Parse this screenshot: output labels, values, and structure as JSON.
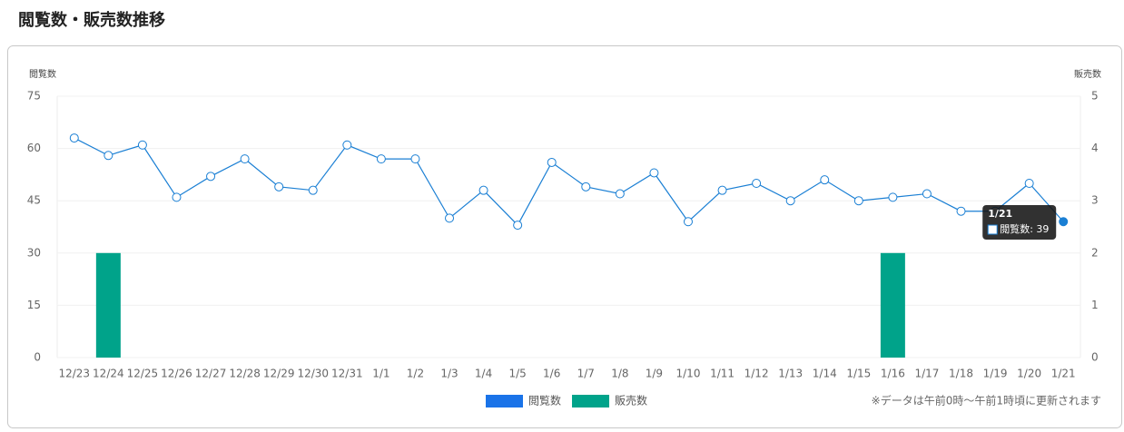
{
  "chart_data": {
    "type": "combo",
    "title": "閲覧数・販売数推移",
    "y_label": "閲覧数",
    "y2_label": "販売数",
    "categories": [
      "12/23",
      "12/24",
      "12/25",
      "12/26",
      "12/27",
      "12/28",
      "12/29",
      "12/30",
      "12/31",
      "1/1",
      "1/2",
      "1/3",
      "1/4",
      "1/5",
      "1/6",
      "1/7",
      "1/8",
      "1/9",
      "1/10",
      "1/11",
      "1/12",
      "1/13",
      "1/14",
      "1/15",
      "1/16",
      "1/17",
      "1/18",
      "1/19",
      "1/20",
      "1/21"
    ],
    "series": [
      {
        "name": "閲覧数",
        "type": "line",
        "color": "#1a7fd4",
        "legend_color": "#1a73e8",
        "values": [
          63,
          58,
          61,
          46,
          52,
          57,
          49,
          48,
          61,
          57,
          57,
          40,
          48,
          38,
          56,
          49,
          47,
          53,
          39,
          48,
          50,
          45,
          51,
          45,
          46,
          47,
          42,
          42,
          50,
          39
        ]
      },
      {
        "name": "販売数",
        "type": "bar",
        "axis": "y2",
        "color": "#00a38a",
        "values": [
          0,
          2,
          0,
          0,
          0,
          0,
          0,
          0,
          0,
          0,
          0,
          0,
          0,
          0,
          0,
          0,
          0,
          0,
          0,
          0,
          0,
          0,
          0,
          0,
          2,
          0,
          0,
          0,
          0,
          0
        ]
      }
    ],
    "ylim": [
      0,
      75
    ],
    "yticks": [
      0,
      15,
      30,
      45,
      60,
      75
    ],
    "y2lim": [
      0,
      5
    ],
    "y2ticks": [
      0,
      1,
      2,
      3,
      4,
      5
    ],
    "grid": true,
    "legend": "bottom",
    "tooltip": {
      "index": 29,
      "title": "1/21",
      "label": "閲覧数: 39"
    },
    "note": "※データは午前0時～午前1時頃に更新されます"
  }
}
